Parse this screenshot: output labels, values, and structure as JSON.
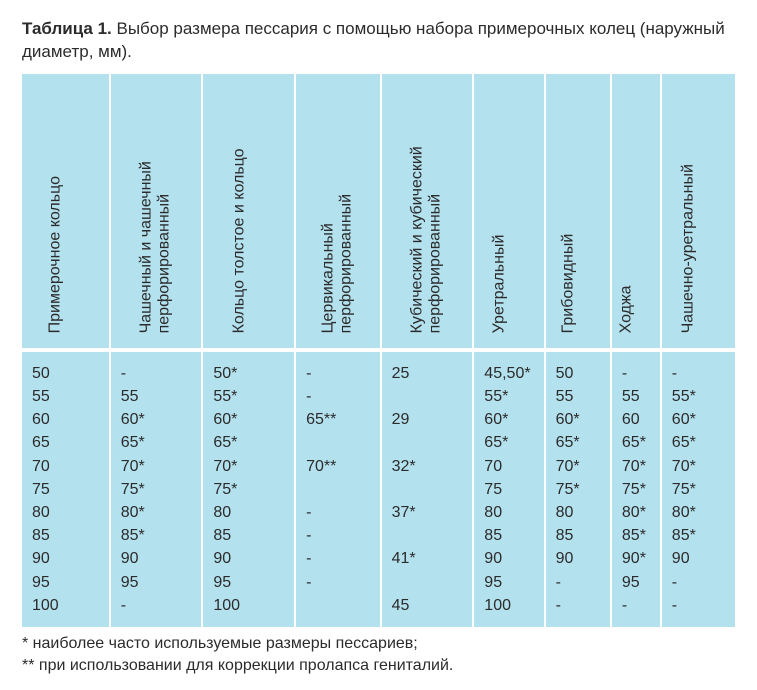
{
  "table": {
    "label": "Таблица 1.",
    "caption": "Выбор размера пессария с помощью набора примерочных колец (наружный диаметр, мм).",
    "background_color": "#b4e1ee",
    "grid_color": "#ffffff",
    "text_color": "#2b2b2b",
    "font_size": 16,
    "header_rotation_deg": -90,
    "columns": [
      {
        "lines": [
          "Примерочное кольцо"
        ]
      },
      {
        "lines": [
          "Чашечный и чашечный",
          "перфорированный"
        ]
      },
      {
        "lines": [
          "Кольцо толстое и кольцо"
        ]
      },
      {
        "lines": [
          "Цервикальный",
          "перфорированный"
        ]
      },
      {
        "lines": [
          "Кубический и кубический",
          "перфорированный"
        ]
      },
      {
        "lines": [
          "Уретральный"
        ]
      },
      {
        "lines": [
          "Грибовидный"
        ]
      },
      {
        "lines": [
          "Ходжа"
        ]
      },
      {
        "lines": [
          "Чашечно-уретральный"
        ]
      }
    ],
    "col_widths_pct": [
      12.3,
      13.0,
      13.0,
      12.0,
      13.0,
      10.0,
      9.3,
      7.0,
      10.4
    ],
    "rows": [
      [
        "50",
        "-",
        "50*",
        "-",
        "25",
        "45,50*",
        "50",
        "-",
        "-"
      ],
      [
        "55",
        "55",
        "55*",
        "-",
        "",
        "55*",
        "55",
        "55",
        "55*"
      ],
      [
        "60",
        "60*",
        "60*",
        "65**",
        "29",
        "60*",
        "60*",
        "60",
        "60*"
      ],
      [
        "65",
        "65*",
        "65*",
        "",
        "",
        "65*",
        "65*",
        "65*",
        "65*"
      ],
      [
        "70",
        "70*",
        "70*",
        "70**",
        "32*",
        "70",
        "70*",
        "70*",
        "70*"
      ],
      [
        "75",
        "75*",
        "75*",
        "",
        "",
        "75",
        "75*",
        "75*",
        "75*"
      ],
      [
        "80",
        "80*",
        "80",
        "-",
        "37*",
        "80",
        "80",
        "80*",
        "80*"
      ],
      [
        "85",
        "85*",
        "85",
        "-",
        "",
        "85",
        "85",
        "85*",
        "85*"
      ],
      [
        "90",
        "90",
        "90",
        "-",
        "41*",
        "90",
        "90",
        "90*",
        "90"
      ],
      [
        "95",
        "95",
        "95",
        "-",
        "",
        "95",
        "-",
        "95",
        "-"
      ],
      [
        "100",
        "-",
        "100",
        "",
        "45",
        "100",
        "-",
        "-",
        "-"
      ]
    ],
    "footnotes": [
      "*   наиболее часто используемые размеры пессариев;",
      "** при использовании для коррекции пролапса гениталий."
    ]
  }
}
